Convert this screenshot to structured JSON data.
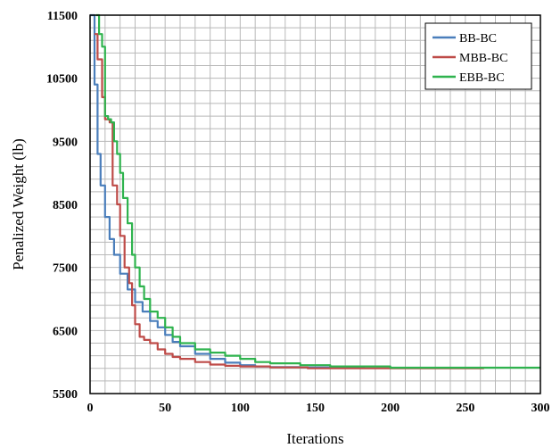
{
  "chart_data": {
    "type": "line",
    "title": "",
    "xlabel": "Iterations",
    "ylabel": "Penalized Weight (lb)",
    "xlim": [
      0,
      300
    ],
    "ylim": [
      5500,
      11500
    ],
    "xticks": [
      0,
      50,
      100,
      150,
      200,
      250,
      300
    ],
    "yticks": [
      5500,
      6500,
      7500,
      8500,
      9500,
      10500,
      11500
    ],
    "grid": true,
    "legend_position": "top-right",
    "series": [
      {
        "name": "BB-BC",
        "color": "#4a7ebb",
        "x": [
          0,
          3,
          5,
          7,
          10,
          13,
          16,
          20,
          25,
          30,
          35,
          40,
          45,
          50,
          55,
          60,
          70,
          80,
          90,
          100,
          110,
          120,
          140,
          160,
          183
        ],
        "y": [
          11500,
          10400,
          9300,
          8800,
          8300,
          7950,
          7700,
          7400,
          7150,
          6950,
          6800,
          6650,
          6550,
          6430,
          6320,
          6250,
          6130,
          6050,
          5990,
          5950,
          5930,
          5920,
          5915,
          5910,
          5910
        ]
      },
      {
        "name": "MBB-BC",
        "color": "#be4b48",
        "x": [
          3,
          5,
          8,
          10,
          13,
          15,
          18,
          20,
          23,
          26,
          28,
          30,
          33,
          36,
          40,
          45,
          50,
          55,
          60,
          70,
          80,
          90,
          100,
          120,
          145,
          180,
          220,
          262
        ],
        "y": [
          11200,
          10800,
          10200,
          9850,
          9800,
          8800,
          8500,
          8000,
          7500,
          7250,
          6900,
          6600,
          6400,
          6350,
          6300,
          6200,
          6130,
          6080,
          6050,
          6000,
          5960,
          5940,
          5930,
          5915,
          5900,
          5900,
          5900,
          5905
        ]
      },
      {
        "name": "EBB-BC",
        "color": "#2fb34e",
        "x": [
          4,
          6,
          8,
          10,
          12,
          14,
          16,
          18,
          20,
          22,
          25,
          28,
          30,
          33,
          36,
          40,
          45,
          50,
          55,
          60,
          70,
          80,
          90,
          100,
          110,
          120,
          140,
          160,
          200,
          250,
          300
        ],
        "y": [
          11500,
          11200,
          11000,
          9900,
          9850,
          9800,
          9500,
          9300,
          9000,
          8600,
          8200,
          7700,
          7500,
          7200,
          7000,
          6800,
          6700,
          6550,
          6400,
          6300,
          6200,
          6150,
          6100,
          6050,
          6000,
          5980,
          5950,
          5930,
          5910,
          5910,
          5910
        ]
      }
    ]
  }
}
